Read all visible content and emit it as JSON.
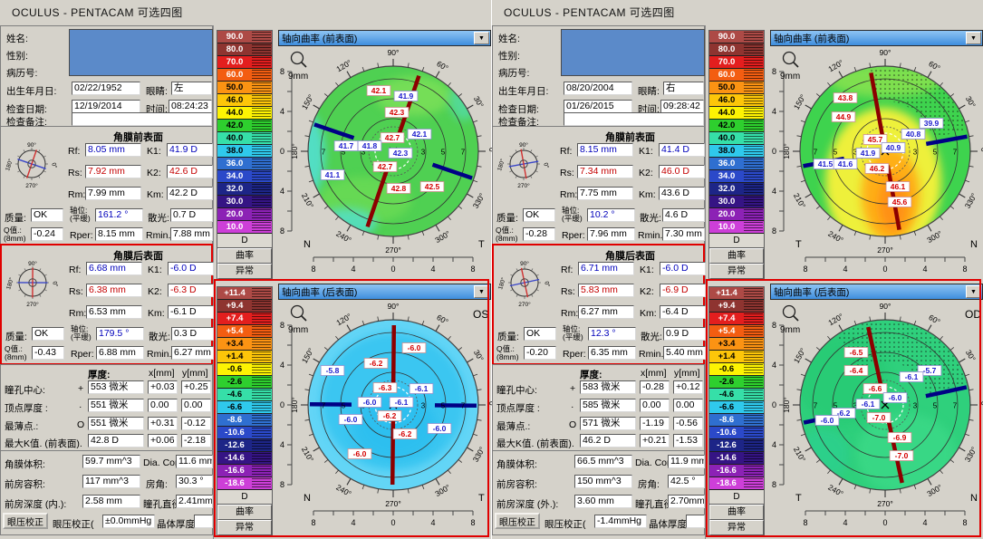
{
  "ui_colors": {
    "window_bg": "#d5d2ca",
    "highlight_red": "#e00000",
    "patient_box_blue": "#5b8ac9",
    "dropdown_blue": "#3f8ede",
    "value_blue": "#0000bb",
    "value_red": "#c40000"
  },
  "labels": {
    "surface": {
      "rf": "Rf:",
      "rs": "Rs:",
      "rm": "Rm:",
      "k1": "K1:",
      "k2": "K2:",
      "km": "Km:",
      "quality": "质量:",
      "axis1": "轴位:",
      "axis2": "(平缓)",
      "ast": "散光:",
      "q1": "Q值.:",
      "q2": "(8mm)",
      "rper": "Rper:",
      "rmin": "Rmin."
    },
    "patient": {
      "name": "姓名:",
      "gender": "性别:",
      "record": "病历号:",
      "dob": "出生年月日:",
      "eye": "眼睛:",
      "date": "检查日期:",
      "time": "时间:",
      "notes": "检查备注:"
    },
    "pachy": {
      "thk": "厚度:",
      "x": "x[mm]",
      "y": "y[mm]",
      "r0": "瞳孔中心:",
      "m0": "+",
      "r1": "顶点厚度 :",
      "m1": "·",
      "r2": "最薄点.:",
      "m2": "O",
      "r3": "最大K值. (前表面)."
    },
    "chamber": {
      "cvol": "角膜体积:",
      "dia": "Dia. Cor.:",
      "acv": "前房容积:",
      "angle": "房角:",
      "pupil": "瞳孔直径:",
      "iop_btn": "眼压校正",
      "iop": "眼压校正(",
      "lens": "晶体厚度."
    }
  },
  "dial_labels": [
    "90°",
    "0°",
    "180°",
    "270°"
  ],
  "scales": {
    "unit": "D",
    "curvature": "曲率",
    "abnormal": "异常",
    "colors": [
      "#ad4a46",
      "#8e3430",
      "#e31e1e",
      "#f35d11",
      "#fb9313",
      "#fdc609",
      "#fdf303",
      "#2ecf2e",
      "#36dfa8",
      "#2fc9ec",
      "#2f6fd0",
      "#2b49c9",
      "#1d2587",
      "#351484",
      "#8c22b5",
      "#cd3fd8"
    ],
    "front_values": [
      "90.0",
      "80.0",
      "70.0",
      "60.0",
      "50.0",
      "46.0",
      "44.0",
      "42.0",
      "40.0",
      "38.0",
      "36.0",
      "34.0",
      "32.0",
      "30.0",
      "20.0",
      "10.0"
    ],
    "back_values": [
      "+11.4",
      "+9.4",
      "+7.4",
      "+5.4",
      "+3.4",
      "+1.4",
      "-0.6",
      "-2.6",
      "-4.6",
      "-6.6",
      "-8.6",
      "-10.6",
      "-12.6",
      "-14.6",
      "-16.6",
      "-18.6"
    ]
  },
  "map_axes": {
    "x": [
      "8",
      "4",
      "0",
      "4",
      "8"
    ],
    "y": [
      "8",
      "4",
      "0",
      "4",
      "8"
    ],
    "radial": [
      "7",
      "5",
      "3",
      "3",
      "5",
      "7"
    ],
    "angles": [
      0,
      30,
      60,
      90,
      120,
      150,
      180,
      210,
      240,
      270,
      300,
      330
    ]
  },
  "panels": [
    {
      "title": "OCULUS  -  PENTACAM   可选四图",
      "patient": {
        "dob": "02/22/1952",
        "eye": "左",
        "date": "12/19/2014",
        "time": "08:24:23",
        "notes": ""
      },
      "front": {
        "title": "角膜前表面",
        "rf": "8.05 mm",
        "k1": "41.9 D",
        "rs": "7.92 mm",
        "k2": "42.6 D",
        "rm": "7.99 mm",
        "km": "42.2 D",
        "quality": "OK",
        "axis": "161.2 °",
        "ast": "0.7 D",
        "qv": "-0.24",
        "rper": "8.15 mm",
        "rmin": "7.88 mm"
      },
      "back": {
        "title": "角膜后表面",
        "rf": "6.68 mm",
        "k1": "-6.0 D",
        "rs": "6.38 mm",
        "k2": "-6.3 D",
        "rm": "6.53 mm",
        "km": "-6.1 D",
        "quality": "OK",
        "axis": "179.5 °",
        "ast": "0.3 D",
        "qv": "-0.43",
        "rper": "6.88 mm",
        "rmin": "6.27 mm"
      },
      "pachy": {
        "r0_t": "553 微米",
        "r0_x": "+0.03",
        "r0_y": "+0.25",
        "r1_t": "551 微米",
        "r1_x": "0.00",
        "r1_y": "0.00",
        "r2_t": "551 微米",
        "r2_x": "+0.31",
        "r2_y": "-0.12",
        "r3_t": "42.8 D",
        "r3_x": "+0.06",
        "r3_y": "-2.18"
      },
      "chamber": {
        "cvol": "59.7 mm^3",
        "dia": "11.6 mm",
        "acv": "117 mm^3",
        "angle": "30.3 °",
        "acd_label": "前房深度 (内.):",
        "acd": "2.58 mm",
        "pupil": "2.41mm",
        "iop": "±0.0mmHg",
        "lens": ""
      },
      "map_front": {
        "title": "轴向曲率 (前表面)",
        "zoom": "9mm",
        "eye": "",
        "left_corner": "N",
        "right_corner": "T",
        "bars": {
          "steep": 71.2,
          "flat": 161.2
        },
        "base": "#4fd052",
        "blobs": [
          [
            150,
            55,
            42,
            22,
            "#79df58",
            0.9
          ],
          [
            95,
            170,
            52,
            26,
            "#6cdb55",
            0.8
          ],
          [
            30,
            120,
            22,
            48,
            "#52dfd0",
            0.9
          ],
          [
            75,
            195,
            34,
            16,
            "#52dfd0",
            0.8
          ],
          [
            205,
            60,
            16,
            22,
            "#57dfc2",
            0.6
          ]
        ],
        "stipple": null,
        "ann": [
          [
            "42.1",
            "r",
            111,
            49
          ],
          [
            "41.9",
            "b",
            141,
            55
          ],
          [
            "42.3",
            "r",
            131,
            73
          ],
          [
            "42.7",
            "r",
            126,
            101
          ],
          [
            "42.1",
            "b",
            156,
            97
          ],
          [
            "41.7",
            "b",
            75,
            110
          ],
          [
            "41.8",
            "b",
            101,
            110
          ],
          [
            "42.3",
            "b",
            135,
            118
          ],
          [
            "42.7",
            "r",
            118,
            133
          ],
          [
            "41.1",
            "b",
            60,
            142
          ],
          [
            "42.8",
            "r",
            133,
            157
          ],
          [
            "42.5",
            "r",
            170,
            155
          ]
        ]
      },
      "map_back": {
        "title": "轴向曲率 (后表面)",
        "zoom": "9mm",
        "eye": "OS",
        "left_corner": "N",
        "right_corner": "T",
        "bars": {
          "steep": 89.5,
          "flat": 179.5
        },
        "base": "#63d5f6",
        "blobs": [
          [
            127,
            112,
            80,
            76,
            "#3ac6f1",
            1
          ],
          [
            129,
            140,
            46,
            36,
            "#2cbdee",
            0.75
          ]
        ],
        "stipple": null,
        "ann": [
          [
            "-6.0",
            "r",
            150,
            53
          ],
          [
            "-6.2",
            "r",
            108,
            70
          ],
          [
            "-5.8",
            "b",
            60,
            78
          ],
          [
            "-6.3",
            "r",
            118,
            97
          ],
          [
            "-6.1",
            "b",
            158,
            98
          ],
          [
            "-6.0",
            "b",
            101,
            113
          ],
          [
            "-6.1",
            "b",
            136,
            113
          ],
          [
            "-6.0",
            "b",
            80,
            132
          ],
          [
            "-6.2",
            "r",
            123,
            128
          ],
          [
            "-6.2",
            "r",
            140,
            148
          ],
          [
            "-6.0",
            "b",
            178,
            142
          ],
          [
            "-6.0",
            "r",
            90,
            170
          ]
        ]
      }
    },
    {
      "title": "OCULUS  -  PENTACAM   可选四图",
      "patient": {
        "dob": "08/20/2004",
        "eye": "右",
        "date": "01/26/2015",
        "time": "09:28:42",
        "notes": ""
      },
      "front": {
        "title": "角膜前表面",
        "rf": "8.15 mm",
        "k1": "41.4 D",
        "rs": "7.34 mm",
        "k2": "46.0 D",
        "rm": "7.75 mm",
        "km": "43.6 D",
        "quality": "OK",
        "axis": "10.2 °",
        "ast": "4.6 D",
        "qv": "-0.28",
        "rper": "7.96 mm",
        "rmin": "7.30 mm"
      },
      "back": {
        "title": "角膜后表面",
        "rf": "6.71 mm",
        "k1": "-6.0 D",
        "rs": "5.83 mm",
        "k2": "-6.9 D",
        "rm": "6.27 mm",
        "km": "-6.4 D",
        "quality": "OK",
        "axis": "12.3 °",
        "ast": "0.9 D",
        "qv": "-0.20",
        "rper": "6.35 mm",
        "rmin": "5.40 mm"
      },
      "pachy": {
        "r0_t": "583 微米",
        "r0_x": "-0.28",
        "r0_y": "+0.12",
        "r1_t": "585 微米",
        "r1_x": "0.00",
        "r1_y": "0.00",
        "r2_t": "571 微米",
        "r2_x": "-1.19",
        "r2_y": "-0.56",
        "r3_t": "46.2 D",
        "r3_x": "+0.21",
        "r3_y": "-1.53"
      },
      "chamber": {
        "cvol": "66.5 mm^3",
        "dia": "11.9 mm",
        "acv": "150 mm^3",
        "angle": "42.5 °",
        "acd_label": "前房深度 (外.):",
        "acd": "3.60 mm",
        "pupil": "2.70mm",
        "iop": "-1.4mmHg",
        "lens": ""
      },
      "map_front": {
        "title": "轴向曲率 (前表面)",
        "zoom": "9mm",
        "eye": "",
        "left_corner": "T",
        "right_corner": "N",
        "bars": {
          "steep": 100.2,
          "flat": 10.2
        },
        "base": "#3ed34e",
        "blobs": [
          [
            125,
            150,
            64,
            82,
            "#eef03a",
            1
          ],
          [
            133,
            164,
            32,
            52,
            "#ffab17",
            0.95
          ],
          [
            136,
            174,
            16,
            30,
            "#ff8d12",
            0.9
          ],
          [
            127,
            38,
            62,
            18,
            "#8fe34f",
            0.8
          ]
        ],
        "stipple": [
          15,
          100,
          55,
          93
        ],
        "ann": [
          [
            "43.8",
            "r",
            83,
            57
          ],
          [
            "44.9",
            "r",
            81,
            78
          ],
          [
            "45.7",
            "r",
            116,
            103
          ],
          [
            "39.9",
            "b",
            178,
            85
          ],
          [
            "40.8",
            "b",
            158,
            97
          ],
          [
            "40.9",
            "b",
            136,
            112
          ],
          [
            "41.9",
            "b",
            108,
            118
          ],
          [
            "41.5",
            "b",
            61,
            130
          ],
          [
            "41.6",
            "b",
            83,
            130
          ],
          [
            "46.2",
            "r",
            118,
            135
          ],
          [
            "46.1",
            "r",
            141,
            155
          ],
          [
            "45.6",
            "r",
            143,
            172
          ]
        ]
      },
      "map_back": {
        "title": "轴向曲率 (后表面)",
        "zoom": "9mm",
        "eye": "OD",
        "left_corner": "T",
        "right_corner": "N",
        "bars": {
          "steep": 102.3,
          "flat": 12.3
        },
        "base": "#2fd07c",
        "blobs": [
          [
            80,
            88,
            50,
            50,
            "#25c973",
            0.7
          ],
          [
            150,
            170,
            55,
            45,
            "#3eda89",
            0.7
          ],
          [
            58,
            170,
            30,
            28,
            "#29cfa0",
            0.4
          ]
        ],
        "stipple": [
          15,
          125,
          48,
          93
        ],
        "ann": [
          [
            "-6.5",
            "r",
            95,
            58
          ],
          [
            "-6.4",
            "r",
            95,
            78
          ],
          [
            "-5.7",
            "b",
            176,
            78
          ],
          [
            "-6.1",
            "b",
            156,
            85
          ],
          [
            "-6.6",
            "r",
            116,
            98
          ],
          [
            "-6.0",
            "b",
            138,
            108
          ],
          [
            "-6.1",
            "b",
            108,
            115
          ],
          [
            "-6.2",
            "b",
            81,
            125
          ],
          [
            "-6.0",
            "b",
            63,
            133
          ],
          [
            "-7.0",
            "r",
            120,
            130
          ],
          [
            "-6.9",
            "r",
            143,
            152
          ],
          [
            "-7.0",
            "r",
            145,
            172
          ]
        ]
      }
    }
  ]
}
